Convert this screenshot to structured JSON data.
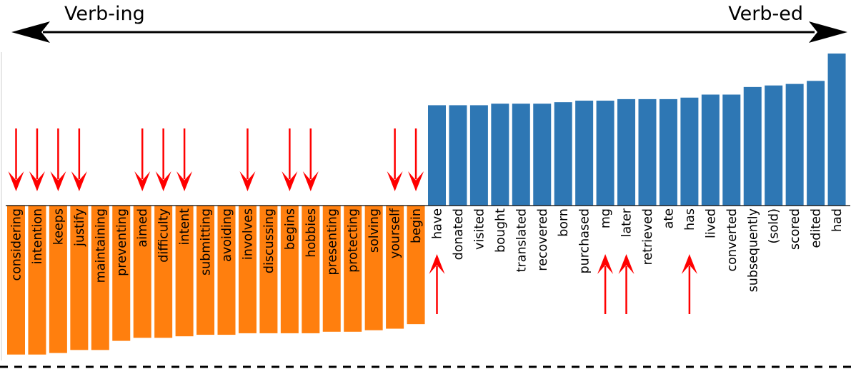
{
  "chart_data": {
    "type": "bar",
    "direction_labels": {
      "left": "Verb-ing",
      "right": "Verb-ed"
    },
    "ylim": [
      -1.0,
      1.0
    ],
    "grid": false,
    "legend": "none",
    "colors": {
      "positive": "#2e77b4",
      "negative": "#ff7f0e",
      "arrow": "#ff0000"
    },
    "bars": [
      {
        "label": "considering",
        "value": -0.98,
        "marked": true
      },
      {
        "label": "intention",
        "value": -0.98,
        "marked": true
      },
      {
        "label": "keeps",
        "value": -0.97,
        "marked": true
      },
      {
        "label": "justify",
        "value": -0.95,
        "marked": true
      },
      {
        "label": "maintaining",
        "value": -0.95,
        "marked": false
      },
      {
        "label": "preventing",
        "value": -0.89,
        "marked": false
      },
      {
        "label": "aimed",
        "value": -0.87,
        "marked": true
      },
      {
        "label": "difficulty",
        "value": -0.87,
        "marked": true
      },
      {
        "label": "intent",
        "value": -0.86,
        "marked": true
      },
      {
        "label": "submitting",
        "value": -0.85,
        "marked": false
      },
      {
        "label": "avoiding",
        "value": -0.85,
        "marked": false
      },
      {
        "label": "involves",
        "value": -0.84,
        "marked": true
      },
      {
        "label": "discussing",
        "value": -0.84,
        "marked": false
      },
      {
        "label": "begins",
        "value": -0.84,
        "marked": true
      },
      {
        "label": "hobbies",
        "value": -0.84,
        "marked": true
      },
      {
        "label": "presenting",
        "value": -0.83,
        "marked": false
      },
      {
        "label": "protecting",
        "value": -0.83,
        "marked": false
      },
      {
        "label": "solving",
        "value": -0.82,
        "marked": false
      },
      {
        "label": "yourself",
        "value": -0.81,
        "marked": true
      },
      {
        "label": "begin",
        "value": -0.78,
        "marked": true
      },
      {
        "label": "have",
        "value": 0.66,
        "marked": true
      },
      {
        "label": "donated",
        "value": 0.66,
        "marked": false
      },
      {
        "label": "visited",
        "value": 0.66,
        "marked": false
      },
      {
        "label": "bought",
        "value": 0.67,
        "marked": false
      },
      {
        "label": "translated",
        "value": 0.67,
        "marked": false
      },
      {
        "label": "recovered",
        "value": 0.67,
        "marked": false
      },
      {
        "label": "born",
        "value": 0.68,
        "marked": false
      },
      {
        "label": "purchased",
        "value": 0.69,
        "marked": false
      },
      {
        "label": "mg",
        "value": 0.69,
        "marked": true
      },
      {
        "label": "later",
        "value": 0.7,
        "marked": true
      },
      {
        "label": "retrieved",
        "value": 0.7,
        "marked": false
      },
      {
        "label": "ate",
        "value": 0.7,
        "marked": false
      },
      {
        "label": "has",
        "value": 0.71,
        "marked": true
      },
      {
        "label": "lived",
        "value": 0.73,
        "marked": false
      },
      {
        "label": "converted",
        "value": 0.73,
        "marked": false
      },
      {
        "label": "subsequently",
        "value": 0.78,
        "marked": false
      },
      {
        "label": "(sold)",
        "value": 0.79,
        "marked": false
      },
      {
        "label": "scored",
        "value": 0.8,
        "marked": false
      },
      {
        "label": "edited",
        "value": 0.82,
        "marked": false
      },
      {
        "label": "had",
        "value": 1.0,
        "marked": false
      }
    ]
  }
}
